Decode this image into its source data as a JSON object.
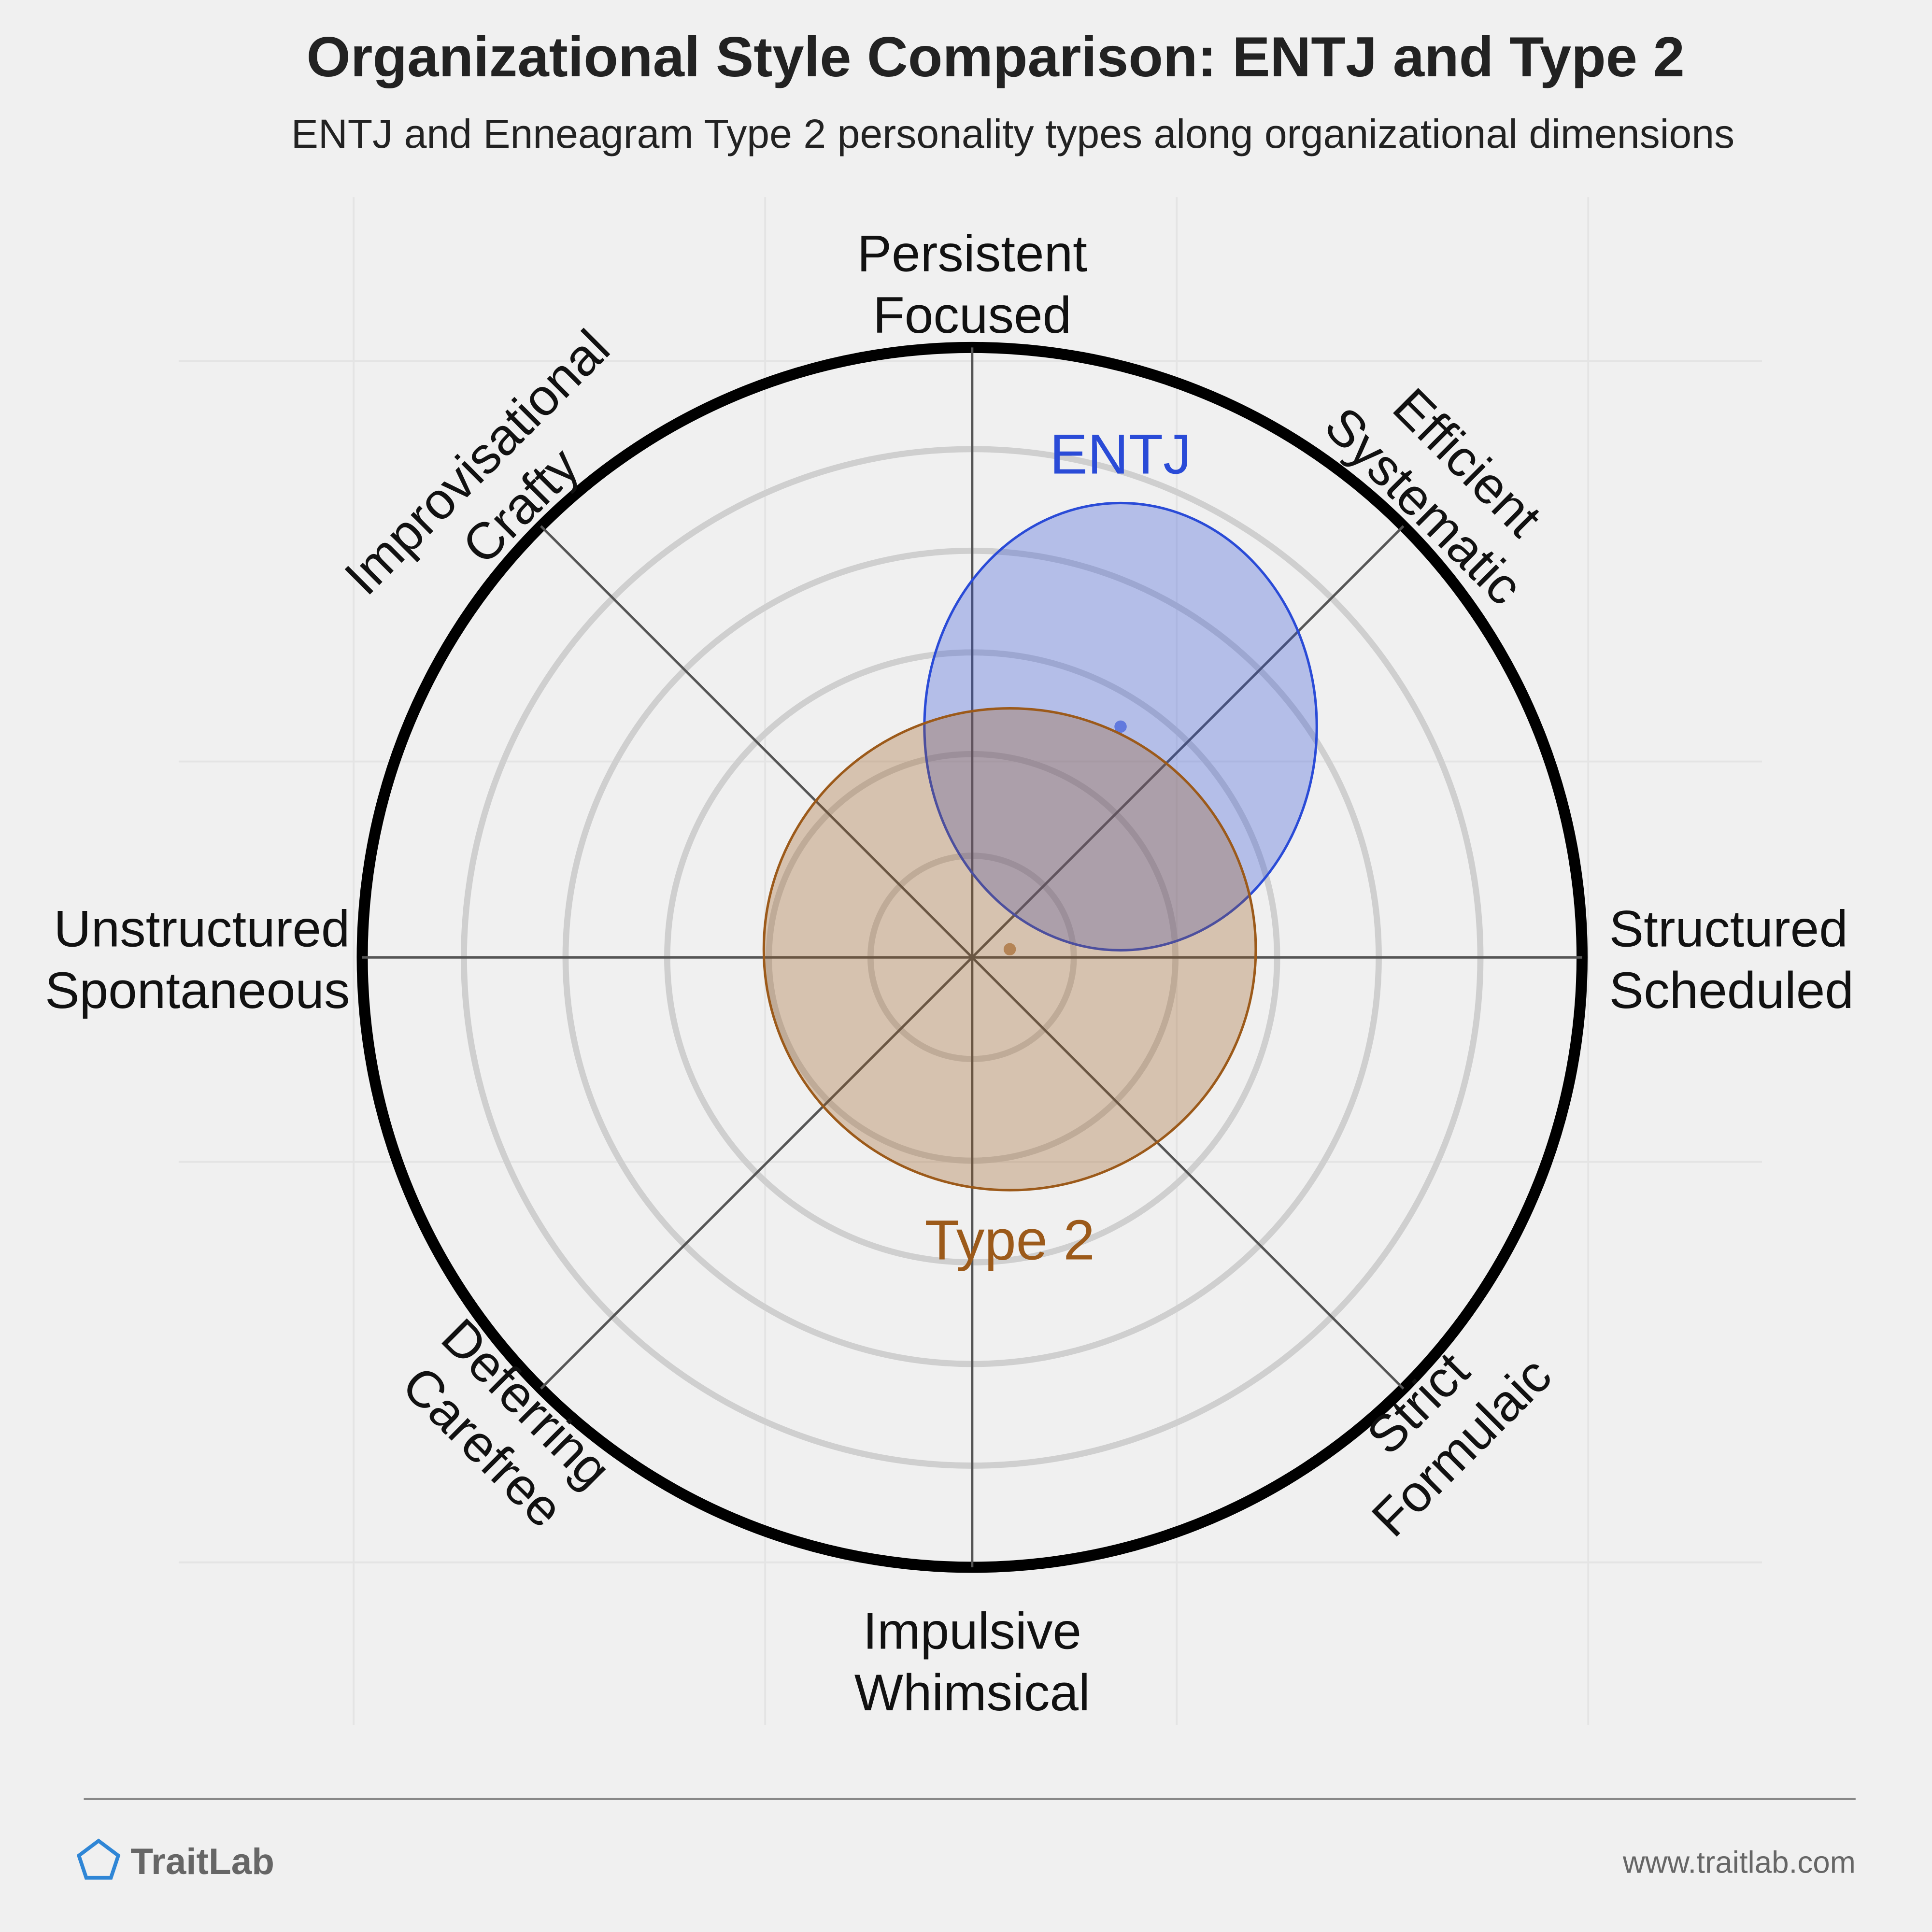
{
  "chart_data": {
    "type": "polar-bubble",
    "title": "Organizational Style Comparison: ENTJ and Type 2",
    "subtitle": "ENTJ and Enneagram Type 2 personality types along organizational dimensions",
    "axes": [
      [
        "Structured",
        "Scheduled"
      ],
      [
        "Efficient",
        "Systematic"
      ],
      [
        "Persistent",
        "Focused"
      ],
      [
        "Improvisational",
        "Crafty"
      ],
      [
        "Unstructured",
        "Spontaneous"
      ],
      [
        "Deferring",
        "Carefree"
      ],
      [
        "Impulsive",
        "Whimsical"
      ],
      [
        "Strict",
        "Formulaic"
      ]
    ],
    "rlim": [
      0,
      6
    ],
    "rticks": [
      1,
      2,
      3,
      4,
      5
    ],
    "series": [
      {
        "name": "ENTJ",
        "color": "#2a4bd7",
        "x": 1.46,
        "y": 2.27,
        "rx": 1.93,
        "ry": 2.2
      },
      {
        "name": "Type 2",
        "color": "#9c5a1a",
        "x": 0.37,
        "y": 0.08,
        "rx": 2.42,
        "ry": 2.37
      }
    ]
  },
  "footer": {
    "brand": "TraitLab",
    "url": "www.traitlab.com"
  }
}
